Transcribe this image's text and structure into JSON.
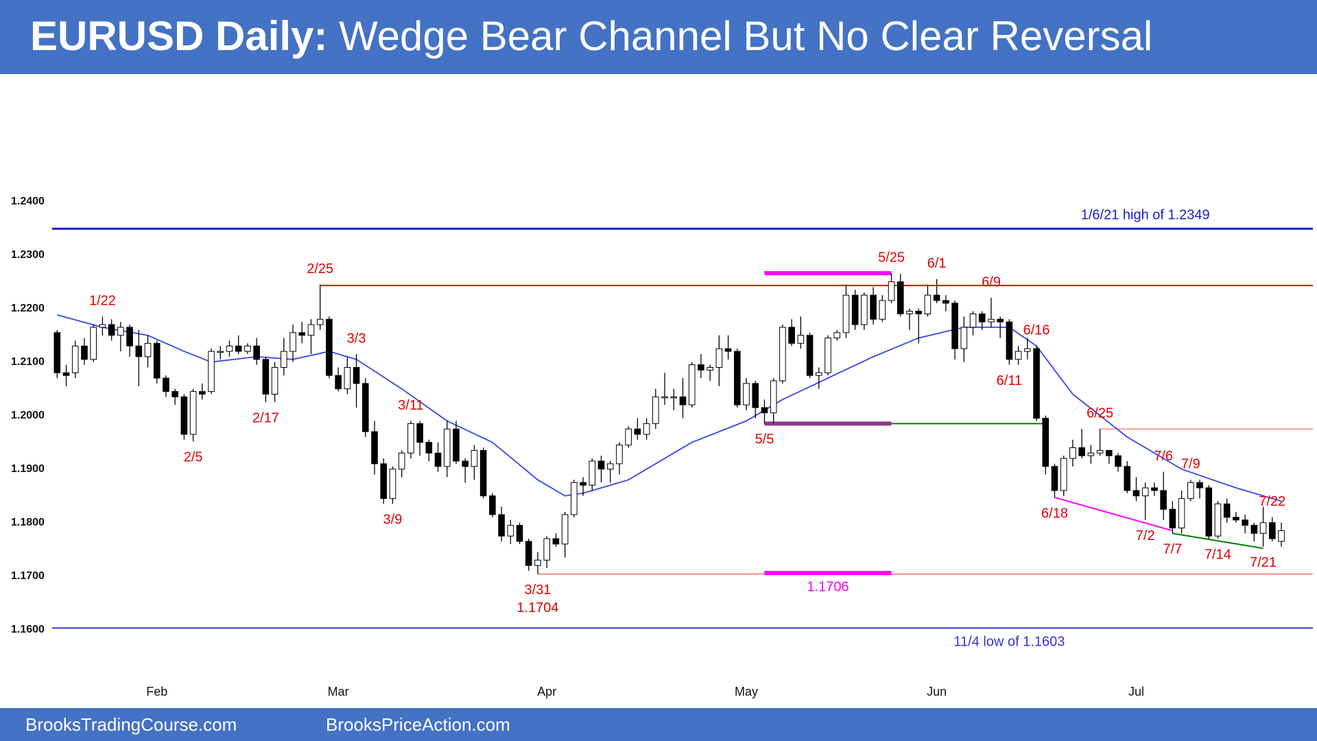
{
  "header": {
    "lead": "EURUSD Daily:",
    "title": "Wedge Bear Channel But No Clear Reversal"
  },
  "footer": {
    "left": "BrooksTradingCourse.com",
    "right": "BrooksPriceAction.com"
  },
  "chart_data": {
    "type": "candlestick",
    "categories": [
      null,
      null,
      null,
      null,
      null,
      null,
      null,
      null,
      null,
      null,
      null,
      "Feb",
      null,
      null,
      null,
      null,
      null,
      null,
      null,
      null,
      null,
      null,
      null,
      null,
      null,
      null,
      null,
      null,
      null,
      null,
      null,
      "Mar",
      null,
      null,
      null,
      null,
      null,
      null,
      null,
      null,
      null,
      null,
      null,
      null,
      null,
      null,
      null,
      null,
      null,
      null,
      null,
      null,
      null,
      null,
      "Apr",
      null,
      null,
      null,
      null,
      null,
      null,
      null,
      null,
      null,
      null,
      null,
      null,
      null,
      null,
      null,
      null,
      null,
      null,
      null,
      null,
      null,
      "May",
      null,
      null,
      null,
      null,
      null,
      null,
      null,
      null,
      null,
      null,
      null,
      null,
      null,
      null,
      null,
      null,
      null,
      null,
      null,
      null,
      "Jun",
      null,
      null,
      null,
      null,
      null,
      null,
      null,
      null,
      null,
      null,
      null,
      null,
      null,
      null,
      null,
      null,
      null,
      null,
      null,
      null,
      null,
      "Jul",
      null,
      null,
      null,
      null,
      null,
      null,
      null,
      null,
      null,
      null,
      null,
      null,
      null,
      null,
      null,
      null
    ],
    "open": [
      1.2155,
      1.208,
      1.208,
      1.213,
      1.2105,
      1.2165,
      1.217,
      1.215,
      1.2165,
      1.213,
      1.211,
      1.2135,
      1.207,
      1.2045,
      1.2035,
      1.1965,
      1.2045,
      1.2045,
      1.212,
      1.212,
      1.213,
      1.212,
      1.213,
      1.2105,
      1.204,
      1.209,
      1.212,
      1.2155,
      1.215,
      1.217,
      1.218,
      1.2075,
      1.205,
      1.209,
      1.206,
      1.197,
      1.191,
      1.1845,
      1.19,
      1.193,
      1.1985,
      1.195,
      1.193,
      1.1905,
      1.1975,
      1.1915,
      1.1905,
      1.1935,
      1.185,
      1.1815,
      1.1775,
      1.1795,
      1.1765,
      1.172,
      1.173,
      1.177,
      1.176,
      1.1815,
      1.1875,
      1.187,
      1.1915,
      1.19,
      1.191,
      1.1945,
      1.1975,
      1.1965,
      1.1985,
      1.2035,
      1.2035,
      1.2035,
      1.202,
      1.2095,
      1.2085,
      1.209,
      1.2125,
      1.212,
      1.202,
      1.206,
      1.2015,
      1.2005,
      1.2065,
      1.2165,
      1.2135,
      1.215,
      1.2075,
      1.208,
      1.2145,
      1.2155,
      1.2225,
      1.217,
      1.2225,
      1.218,
      1.2215,
      1.225,
      1.219,
      1.2195,
      1.219,
      1.2225,
      1.2215,
      1.221,
      1.2125,
      1.2165,
      1.219,
      1.2175,
      1.218,
      1.2175,
      1.2105,
      1.212,
      1.2125,
      1.1995,
      1.1905,
      1.186,
      1.192,
      1.194,
      1.1925,
      1.193,
      1.1935,
      1.1925,
      1.1905,
      1.186,
      1.185,
      1.1865,
      1.186,
      1.1825,
      1.179,
      1.1845,
      1.1875,
      1.1865,
      1.1775,
      1.1835,
      1.181,
      1.1805,
      1.1795,
      1.178,
      1.18,
      1.1765
    ],
    "high": [
      1.216,
      1.2095,
      1.214,
      1.2145,
      1.217,
      1.2185,
      1.218,
      1.2175,
      1.217,
      1.216,
      1.215,
      1.214,
      1.2075,
      1.205,
      1.204,
      1.205,
      1.206,
      1.2125,
      1.213,
      1.214,
      1.215,
      1.2135,
      1.2145,
      1.211,
      1.21,
      1.2145,
      1.217,
      1.2175,
      1.218,
      1.2245,
      1.2185,
      1.209,
      1.211,
      1.2115,
      1.207,
      1.199,
      1.192,
      1.1905,
      1.1935,
      1.199,
      1.199,
      1.1955,
      1.195,
      1.199,
      1.199,
      1.192,
      1.1945,
      1.194,
      1.1855,
      1.183,
      1.1805,
      1.18,
      1.177,
      1.1745,
      1.1775,
      1.178,
      1.182,
      1.188,
      1.1885,
      1.192,
      1.1925,
      1.1915,
      1.195,
      1.198,
      1.1995,
      1.1995,
      1.205,
      1.208,
      1.205,
      1.207,
      1.21,
      1.2115,
      1.2095,
      1.215,
      1.215,
      1.2125,
      1.207,
      1.2065,
      1.203,
      1.207,
      1.217,
      1.218,
      1.2185,
      1.2155,
      1.209,
      1.215,
      1.216,
      1.2245,
      1.2235,
      1.223,
      1.224,
      1.2225,
      1.2266,
      1.2265,
      1.22,
      1.22,
      1.2245,
      1.2255,
      1.2225,
      1.2215,
      1.2185,
      1.2195,
      1.2195,
      1.222,
      1.2185,
      1.218,
      1.213,
      1.2145,
      1.213,
      1.2,
      1.191,
      1.1925,
      1.1955,
      1.1975,
      1.1945,
      1.1975,
      1.1935,
      1.193,
      1.1915,
      1.1885,
      1.1875,
      1.1875,
      1.1895,
      1.184,
      1.186,
      1.188,
      1.188,
      1.187,
      1.184,
      1.1845,
      1.182,
      1.1815,
      1.18,
      1.183,
      1.181,
      1.18
    ],
    "low": [
      1.207,
      1.2055,
      1.207,
      1.2095,
      1.21,
      1.215,
      1.214,
      1.212,
      1.211,
      1.2055,
      1.209,
      1.206,
      1.2035,
      1.202,
      1.1955,
      1.1952,
      1.203,
      1.204,
      1.2105,
      1.211,
      1.2115,
      1.2115,
      1.2095,
      1.2025,
      1.2025,
      1.2075,
      1.21,
      1.2135,
      1.2115,
      1.216,
      1.207,
      1.2045,
      1.204,
      1.2015,
      1.196,
      1.189,
      1.1835,
      1.1835,
      1.1885,
      1.192,
      1.1925,
      1.1915,
      1.1895,
      1.1885,
      1.191,
      1.1875,
      1.188,
      1.1845,
      1.181,
      1.1765,
      1.176,
      1.176,
      1.171,
      1.1704,
      1.1715,
      1.1755,
      1.1735,
      1.181,
      1.185,
      1.186,
      1.1875,
      1.1875,
      1.189,
      1.194,
      1.1955,
      1.1955,
      1.1975,
      1.202,
      1.201,
      1.1995,
      1.2015,
      1.207,
      1.2065,
      1.2055,
      1.2105,
      1.2015,
      1.201,
      1.1995,
      1.1985,
      1.1985,
      1.206,
      1.213,
      1.2125,
      1.207,
      1.205,
      1.2075,
      1.214,
      1.2145,
      1.216,
      1.216,
      1.217,
      1.2175,
      1.221,
      1.2185,
      1.216,
      1.2135,
      1.2185,
      1.221,
      1.2195,
      1.2105,
      1.21,
      1.215,
      1.216,
      1.2165,
      1.2145,
      1.2095,
      1.2095,
      1.2105,
      1.199,
      1.189,
      1.1847,
      1.185,
      1.1905,
      1.192,
      1.191,
      1.1925,
      1.191,
      1.1895,
      1.1855,
      1.184,
      1.1805,
      1.185,
      1.1805,
      1.178,
      1.178,
      1.184,
      1.1845,
      1.177,
      1.177,
      1.18,
      1.18,
      1.178,
      1.1765,
      1.1755,
      1.1765,
      1.1755
    ],
    "close": [
      1.208,
      1.2075,
      1.213,
      1.2105,
      1.2165,
      1.217,
      1.215,
      1.2165,
      1.213,
      1.211,
      1.2135,
      1.207,
      1.2045,
      1.2035,
      1.1965,
      1.2045,
      1.204,
      1.212,
      1.212,
      1.213,
      1.212,
      1.213,
      1.2105,
      1.204,
      1.209,
      1.212,
      1.2155,
      1.215,
      1.217,
      1.218,
      1.2075,
      1.205,
      1.209,
      1.206,
      1.197,
      1.191,
      1.1845,
      1.19,
      1.193,
      1.1985,
      1.195,
      1.193,
      1.1905,
      1.1975,
      1.1915,
      1.1905,
      1.1935,
      1.185,
      1.1815,
      1.1775,
      1.1795,
      1.1765,
      1.172,
      1.173,
      1.177,
      1.176,
      1.1815,
      1.1875,
      1.187,
      1.1915,
      1.19,
      1.191,
      1.1945,
      1.1975,
      1.1965,
      1.1985,
      1.2035,
      1.2035,
      1.2035,
      1.202,
      1.2095,
      1.2085,
      1.209,
      1.2125,
      1.212,
      1.202,
      1.206,
      1.2015,
      1.2005,
      1.2065,
      1.2165,
      1.2135,
      1.215,
      1.2075,
      1.208,
      1.2145,
      1.2155,
      1.2225,
      1.217,
      1.2225,
      1.218,
      1.2215,
      1.225,
      1.219,
      1.2195,
      1.219,
      1.2225,
      1.2215,
      1.221,
      1.2125,
      1.2165,
      1.219,
      1.2175,
      1.218,
      1.2175,
      1.2105,
      1.212,
      1.2125,
      1.1995,
      1.1905,
      1.186,
      1.192,
      1.194,
      1.1925,
      1.193,
      1.1935,
      1.1925,
      1.1905,
      1.186,
      1.185,
      1.1865,
      1.186,
      1.1825,
      1.179,
      1.1845,
      1.1875,
      1.1865,
      1.1775,
      1.1835,
      1.181,
      1.1805,
      1.1795,
      1.178,
      1.18,
      1.177,
      1.1785
    ],
    "up_color": "#ffffff",
    "down_color": "#000000",
    "moving_average": {
      "color": "#3344ee",
      "x": [
        0,
        5,
        10,
        14,
        17,
        22,
        26,
        30,
        33,
        38,
        43,
        48,
        53,
        56,
        58,
        63,
        70,
        76,
        80,
        85,
        90,
        95,
        100,
        105,
        108,
        112,
        118,
        124,
        130,
        135
      ],
      "values": [
        1.2188,
        1.2165,
        1.215,
        1.212,
        1.21,
        1.211,
        1.2105,
        1.212,
        1.2105,
        1.205,
        1.199,
        1.195,
        1.188,
        1.185,
        1.1855,
        1.188,
        1.195,
        1.199,
        1.203,
        1.207,
        1.211,
        1.2145,
        1.2165,
        1.2165,
        1.213,
        1.204,
        1.196,
        1.19,
        1.1865,
        1.184
      ]
    },
    "ylim": [
      1.146,
      1.262
    ],
    "yticks": [
      {
        "value": 1.16,
        "label": "1.1600"
      },
      {
        "value": 1.17,
        "label": "1.1700"
      },
      {
        "value": 1.18,
        "label": "1.1800"
      },
      {
        "value": 1.19,
        "label": "1.1900"
      },
      {
        "value": 1.2,
        "label": "1.2000"
      },
      {
        "value": 1.21,
        "label": "1.2100"
      },
      {
        "value": 1.22,
        "label": "1.2200"
      },
      {
        "value": 1.23,
        "label": "1.2300"
      },
      {
        "value": 1.24,
        "label": "1.2400"
      }
    ],
    "grid": false,
    "levels": [
      {
        "value": 1.2349,
        "color": "#1a1acc",
        "from": 0,
        "to": null,
        "thick": false,
        "label": "1/6/21 high of 1.2349",
        "label_at": 120,
        "label_side": "above"
      },
      {
        "value": 1.2243,
        "color": "#e00000",
        "from": 29,
        "to": null,
        "thick": false
      },
      {
        "value": 1.1704,
        "color": "#f28b82",
        "from": 53,
        "to": null,
        "thick": false
      },
      {
        "value": 1.1603,
        "color": "#3333cc",
        "from": 0,
        "to": null,
        "thick": false,
        "label": "11/4 low of 1.1603",
        "label_at": 105,
        "label_side": "below"
      },
      {
        "value": 1.1975,
        "color": "#f4a0a0",
        "from": 115,
        "to": null,
        "thick": false
      },
      {
        "value": 1.1985,
        "color": "#008000",
        "from": 92,
        "to": 109,
        "thick": false
      },
      {
        "value": 1.1985,
        "color": "#8b3a8b",
        "from": 78,
        "to": 92,
        "thick": true
      },
      {
        "value": 1.2266,
        "color": "#ff00ff",
        "from": 78,
        "to": 92,
        "thick": true
      },
      {
        "value": 1.1706,
        "color": "#ff00ff",
        "from": 78,
        "to": 92,
        "thick": true,
        "label": "1.1706",
        "label_at": 85,
        "label_side": "below"
      }
    ],
    "trendlines": [
      {
        "color": "#ff00ff",
        "x": [
          110,
          123
        ],
        "values": [
          1.1847,
          1.1785
        ]
      },
      {
        "color": "#008000",
        "x": [
          123,
          133
        ],
        "values": [
          1.178,
          1.1752
        ]
      }
    ],
    "annotation_color": "#e00000",
    "annotations": [
      {
        "text": [
          "1/22"
        ],
        "at": 5,
        "side": "above"
      },
      {
        "text": [
          "2/5"
        ],
        "at": 15,
        "side": "below"
      },
      {
        "text": [
          "2/17"
        ],
        "at": 23,
        "side": "below"
      },
      {
        "text": [
          "2/25"
        ],
        "at": 29,
        "side": "above"
      },
      {
        "text": [
          "3/3"
        ],
        "at": 33,
        "side": "above"
      },
      {
        "text": [
          "3/9"
        ],
        "at": 37,
        "side": "below"
      },
      {
        "text": [
          "3/11"
        ],
        "at": 39,
        "side": "above"
      },
      {
        "text": [
          "3/31",
          "1.1704"
        ],
        "at": 53,
        "side": "below"
      },
      {
        "text": [
          "5/5"
        ],
        "at": 78,
        "side": "below"
      },
      {
        "text": [
          "5/25"
        ],
        "at": 92,
        "side": "above"
      },
      {
        "text": [
          "6/1"
        ],
        "at": 97,
        "side": "above"
      },
      {
        "text": [
          "6/9"
        ],
        "at": 103,
        "side": "above"
      },
      {
        "text": [
          "6/16"
        ],
        "at": 108,
        "side": "above"
      },
      {
        "text": [
          "6/11"
        ],
        "at": 105,
        "side": "below"
      },
      {
        "text": [
          "6/18"
        ],
        "at": 110,
        "side": "below"
      },
      {
        "text": [
          "6/25"
        ],
        "at": 115,
        "side": "above"
      },
      {
        "text": [
          "7/2"
        ],
        "at": 120,
        "side": "below"
      },
      {
        "text": [
          "7/6"
        ],
        "at": 122,
        "side": "above"
      },
      {
        "text": [
          "7/7"
        ],
        "at": 123,
        "side": "below"
      },
      {
        "text": [
          "7/9"
        ],
        "at": 125,
        "side": "above"
      },
      {
        "text": [
          "7/14"
        ],
        "at": 128,
        "side": "below"
      },
      {
        "text": [
          "7/21"
        ],
        "at": 133,
        "side": "below"
      },
      {
        "text": [
          "7/22"
        ],
        "at": 134,
        "side": "above"
      }
    ]
  }
}
